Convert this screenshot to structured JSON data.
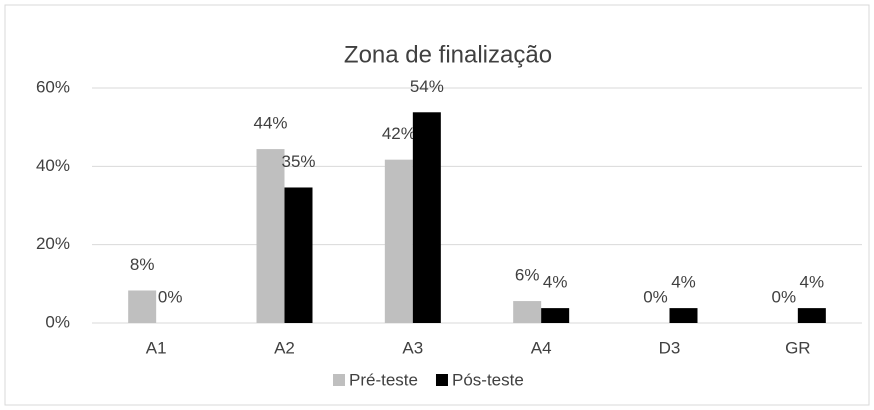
{
  "chart_data": {
    "type": "bar",
    "title": "Zona de finalização",
    "categories": [
      "A1",
      "A2",
      "A3",
      "A4",
      "D3",
      "GR"
    ],
    "series": [
      {
        "name": "Pré-teste",
        "color": "#bfbfbf",
        "values": [
          8.3,
          44.4,
          41.7,
          5.6,
          0,
          0
        ],
        "value_labels": [
          "8%",
          "44%",
          "42%",
          "6%",
          "0%",
          "0%"
        ]
      },
      {
        "name": "Pós-teste",
        "color": "#000000",
        "values": [
          0,
          34.6,
          53.8,
          3.8,
          3.8,
          3.8
        ],
        "value_labels": [
          "0%",
          "35%",
          "54%",
          "4%",
          "4%",
          "4%"
        ]
      }
    ],
    "ylim": [
      0,
      60
    ],
    "yticks": [
      {
        "value": 0,
        "label": "0%"
      },
      {
        "value": 20,
        "label": "20%"
      },
      {
        "value": 40,
        "label": "40%"
      },
      {
        "value": 60,
        "label": "60%"
      }
    ],
    "grid": true,
    "legend": "bottom"
  }
}
